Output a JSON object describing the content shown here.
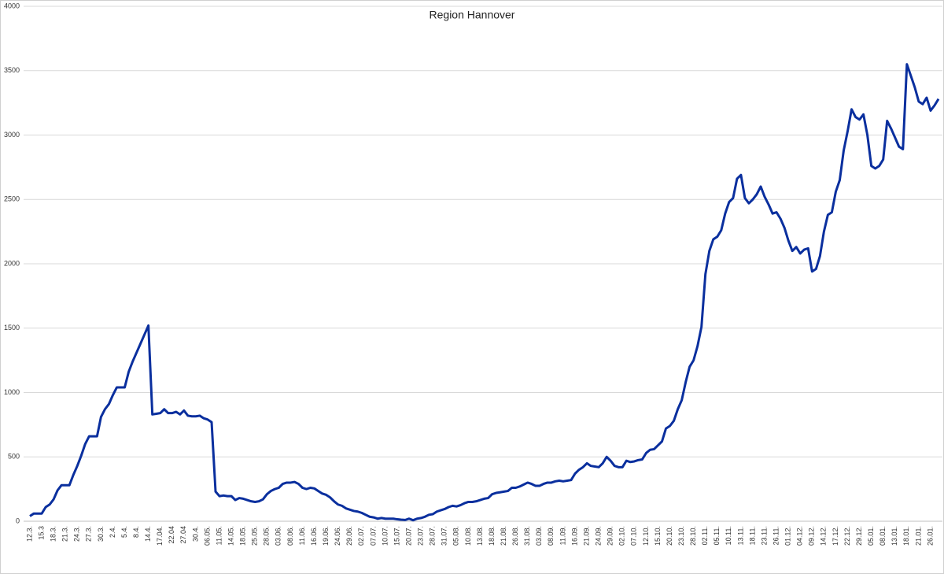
{
  "chart_data": {
    "type": "line",
    "title": "Region Hannover",
    "categories": [
      "12.3.",
      null,
      null,
      "15.3",
      null,
      null,
      "18.3.",
      null,
      null,
      "21.3.",
      null,
      null,
      "24.3.",
      null,
      null,
      "27.3.",
      null,
      null,
      "30.3.",
      null,
      null,
      "2.4.",
      null,
      null,
      "5.4.",
      null,
      null,
      "8.4.",
      null,
      null,
      "14.4.",
      null,
      null,
      "17.04.",
      null,
      null,
      "22.04",
      null,
      null,
      "27.04",
      null,
      null,
      "30.4.",
      null,
      null,
      "06.05.",
      null,
      null,
      "11.05.",
      null,
      null,
      "14.05.",
      null,
      null,
      "18.05.",
      null,
      null,
      "25.05.",
      null,
      null,
      "28.05.",
      null,
      null,
      "03.06.",
      null,
      null,
      "08.06.",
      null,
      null,
      "11.06.",
      null,
      null,
      "16.06.",
      null,
      null,
      "19.06.",
      null,
      null,
      "24.06.",
      null,
      null,
      "29.06.",
      null,
      null,
      "02.07.",
      null,
      null,
      "07.07.",
      null,
      null,
      "10.07.",
      null,
      null,
      "15.07.",
      null,
      null,
      "20.07.",
      null,
      null,
      "23.07.",
      null,
      null,
      "28.07.",
      null,
      null,
      "31.07.",
      null,
      null,
      "05.08.",
      null,
      null,
      "10.08.",
      null,
      null,
      "13.08.",
      null,
      null,
      "18.08.",
      null,
      null,
      "21.08.",
      null,
      null,
      "26.08.",
      null,
      null,
      "31.08.",
      null,
      null,
      "03.09.",
      null,
      null,
      "08.09.",
      null,
      null,
      "11.09.",
      null,
      null,
      "16.09.",
      null,
      null,
      "21.09.",
      null,
      null,
      "24.09.",
      null,
      null,
      "29.09.",
      null,
      null,
      "02.10.",
      null,
      null,
      "07.10.",
      null,
      null,
      "12.10.",
      null,
      null,
      "15.10.",
      null,
      null,
      "20.10.",
      null,
      null,
      "23.10.",
      null,
      null,
      "28.10.",
      null,
      null,
      "02.11.",
      null,
      null,
      "05.11.",
      null,
      null,
      "10.11.",
      null,
      null,
      "13.11.",
      null,
      null,
      "18.11.",
      null,
      null,
      "23.11.",
      null,
      null,
      "26.11.",
      null,
      null,
      "01.12.",
      null,
      null,
      "04.12.",
      null,
      null,
      "09.12.",
      null,
      null,
      "14.12.",
      null,
      null,
      "17.12.",
      null,
      null,
      "22.12.",
      null,
      null,
      "29.12.",
      null,
      null,
      "05.01.",
      null,
      null,
      "08.01.",
      null,
      null,
      "13.01.",
      null,
      null,
      "18.01.",
      null,
      null,
      "21.01.",
      null,
      null,
      "26.01.",
      null,
      null
    ],
    "series": [
      {
        "color": "#0a2f9e",
        "values": [
          40,
          60,
          60,
          60,
          110,
          130,
          170,
          240,
          280,
          280,
          280,
          360,
          430,
          510,
          600,
          660,
          660,
          660,
          810,
          870,
          910,
          980,
          1040,
          1040,
          1040,
          1160,
          1240,
          1310,
          1380,
          1450,
          1520,
          830,
          835,
          840,
          870,
          840,
          840,
          850,
          830,
          860,
          820,
          815,
          815,
          820,
          800,
          790,
          770,
          230,
          195,
          200,
          195,
          195,
          165,
          180,
          175,
          165,
          155,
          150,
          155,
          170,
          210,
          235,
          250,
          260,
          290,
          300,
          300,
          305,
          290,
          260,
          250,
          260,
          255,
          235,
          215,
          205,
          185,
          155,
          130,
          120,
          100,
          90,
          80,
          75,
          65,
          50,
          35,
          30,
          20,
          25,
          20,
          20,
          20,
          15,
          12,
          10,
          20,
          8,
          20,
          25,
          35,
          50,
          55,
          75,
          85,
          95,
          110,
          120,
          115,
          125,
          140,
          150,
          150,
          155,
          165,
          175,
          180,
          210,
          220,
          225,
          230,
          235,
          260,
          260,
          270,
          285,
          300,
          290,
          275,
          275,
          290,
          300,
          300,
          310,
          315,
          310,
          315,
          320,
          370,
          400,
          420,
          450,
          430,
          425,
          420,
          450,
          500,
          470,
          430,
          420,
          420,
          470,
          460,
          465,
          475,
          480,
          530,
          555,
          560,
          590,
          620,
          720,
          740,
          780,
          870,
          940,
          1080,
          1200,
          1250,
          1360,
          1510,
          1920,
          2100,
          2190,
          2210,
          2260,
          2390,
          2480,
          2510,
          2660,
          2690,
          2510,
          2470,
          2500,
          2540,
          2600,
          2520,
          2460,
          2390,
          2400,
          2350,
          2280,
          2180,
          2100,
          2130,
          2080,
          2110,
          2120,
          1940,
          1960,
          2060,
          2250,
          2380,
          2400,
          2560,
          2650,
          2880,
          3030,
          3200,
          3140,
          3120,
          3160,
          3000,
          2760,
          2740,
          2760,
          2810,
          3110,
          3050,
          2980,
          2910,
          2890,
          3550,
          3460,
          3370,
          3260,
          3240,
          3290,
          3190,
          3230,
          3280
        ]
      }
    ],
    "ylim": [
      0,
      4000
    ],
    "yticks": [
      0,
      500,
      1000,
      1500,
      2000,
      2500,
      3000,
      3500,
      4000
    ],
    "grid": true
  }
}
